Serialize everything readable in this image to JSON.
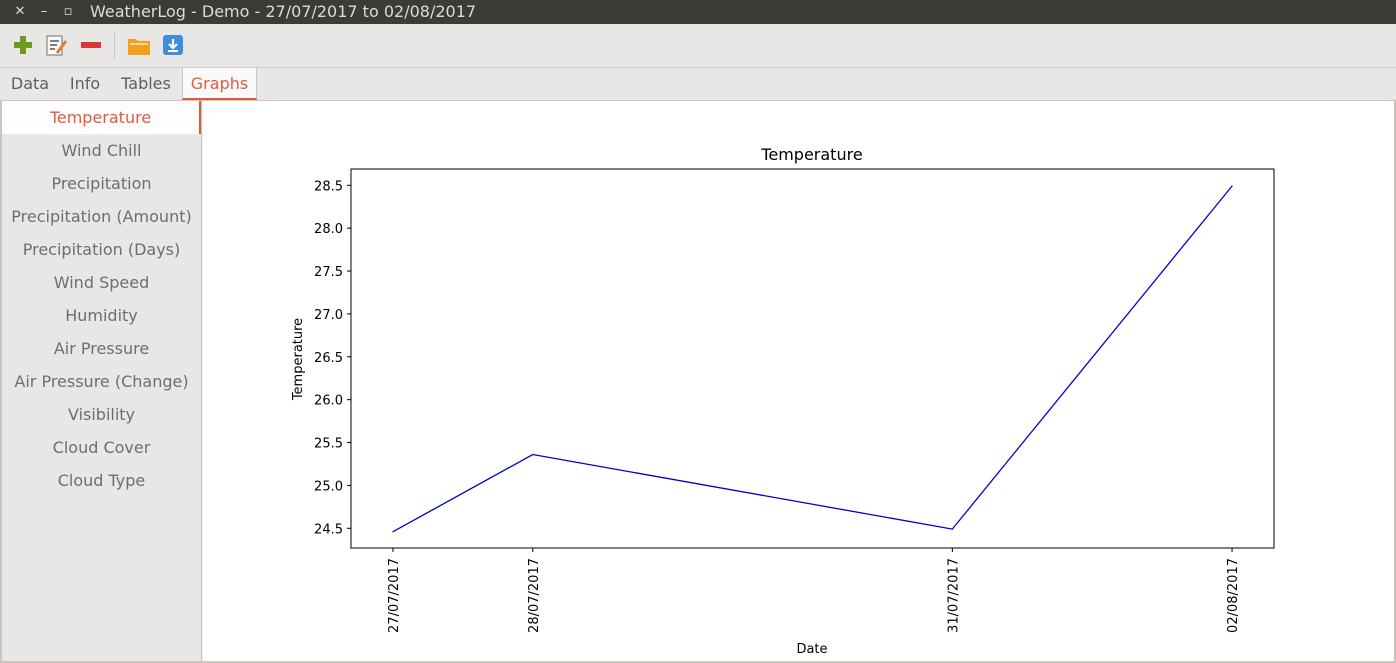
{
  "window": {
    "title": "WeatherLog - Demo - 27/07/2017 to 02/08/2017",
    "close_glyph": "✕",
    "minimize_glyph": "–",
    "maximize_glyph": "▫"
  },
  "toolbar": {
    "buttons": [
      {
        "name": "add-icon",
        "color": "#6d9a1f"
      },
      {
        "name": "edit-icon",
        "color": "#e0822a"
      },
      {
        "name": "remove-icon",
        "color": "#d93636"
      },
      {
        "name": "folder-icon",
        "color": "#f0a01e"
      },
      {
        "name": "download-icon",
        "color": "#3d8fdc"
      }
    ]
  },
  "tabs": [
    {
      "label": "Data"
    },
    {
      "label": "Info"
    },
    {
      "label": "Tables"
    },
    {
      "label": "Graphs",
      "active": true
    }
  ],
  "sidebar": {
    "items": [
      {
        "label": "Temperature",
        "active": true
      },
      {
        "label": "Wind Chill"
      },
      {
        "label": "Precipitation"
      },
      {
        "label": "Precipitation (Amount)"
      },
      {
        "label": "Precipitation (Days)"
      },
      {
        "label": "Wind Speed"
      },
      {
        "label": "Humidity"
      },
      {
        "label": "Air Pressure"
      },
      {
        "label": "Air Pressure (Change)"
      },
      {
        "label": "Visibility"
      },
      {
        "label": "Cloud Cover"
      },
      {
        "label": "Cloud Type"
      }
    ]
  },
  "colors": {
    "accent": "#e05a3a",
    "line": "#0000cc"
  },
  "chart_data": {
    "type": "line",
    "title": "Temperature",
    "xlabel": "Date",
    "ylabel": "Temperature",
    "x": [
      "27/07/2017",
      "28/07/2017",
      "31/07/2017",
      "02/08/2017"
    ],
    "series": [
      {
        "values": [
          24.46,
          25.36,
          24.49,
          28.49
        ]
      }
    ],
    "xlim": [
      "27/07/2017",
      "02/08/2017"
    ],
    "ylim": [
      24.27,
      28.69
    ],
    "yticks": [
      24.5,
      25.0,
      25.5,
      26.0,
      26.5,
      27.0,
      27.5,
      28.0,
      28.5
    ],
    "ytick_labels": [
      "24.5",
      "25.0",
      "25.5",
      "26.0",
      "26.5",
      "27.0",
      "27.5",
      "28.0",
      "28.5"
    ],
    "grid": false,
    "legend": "none"
  }
}
